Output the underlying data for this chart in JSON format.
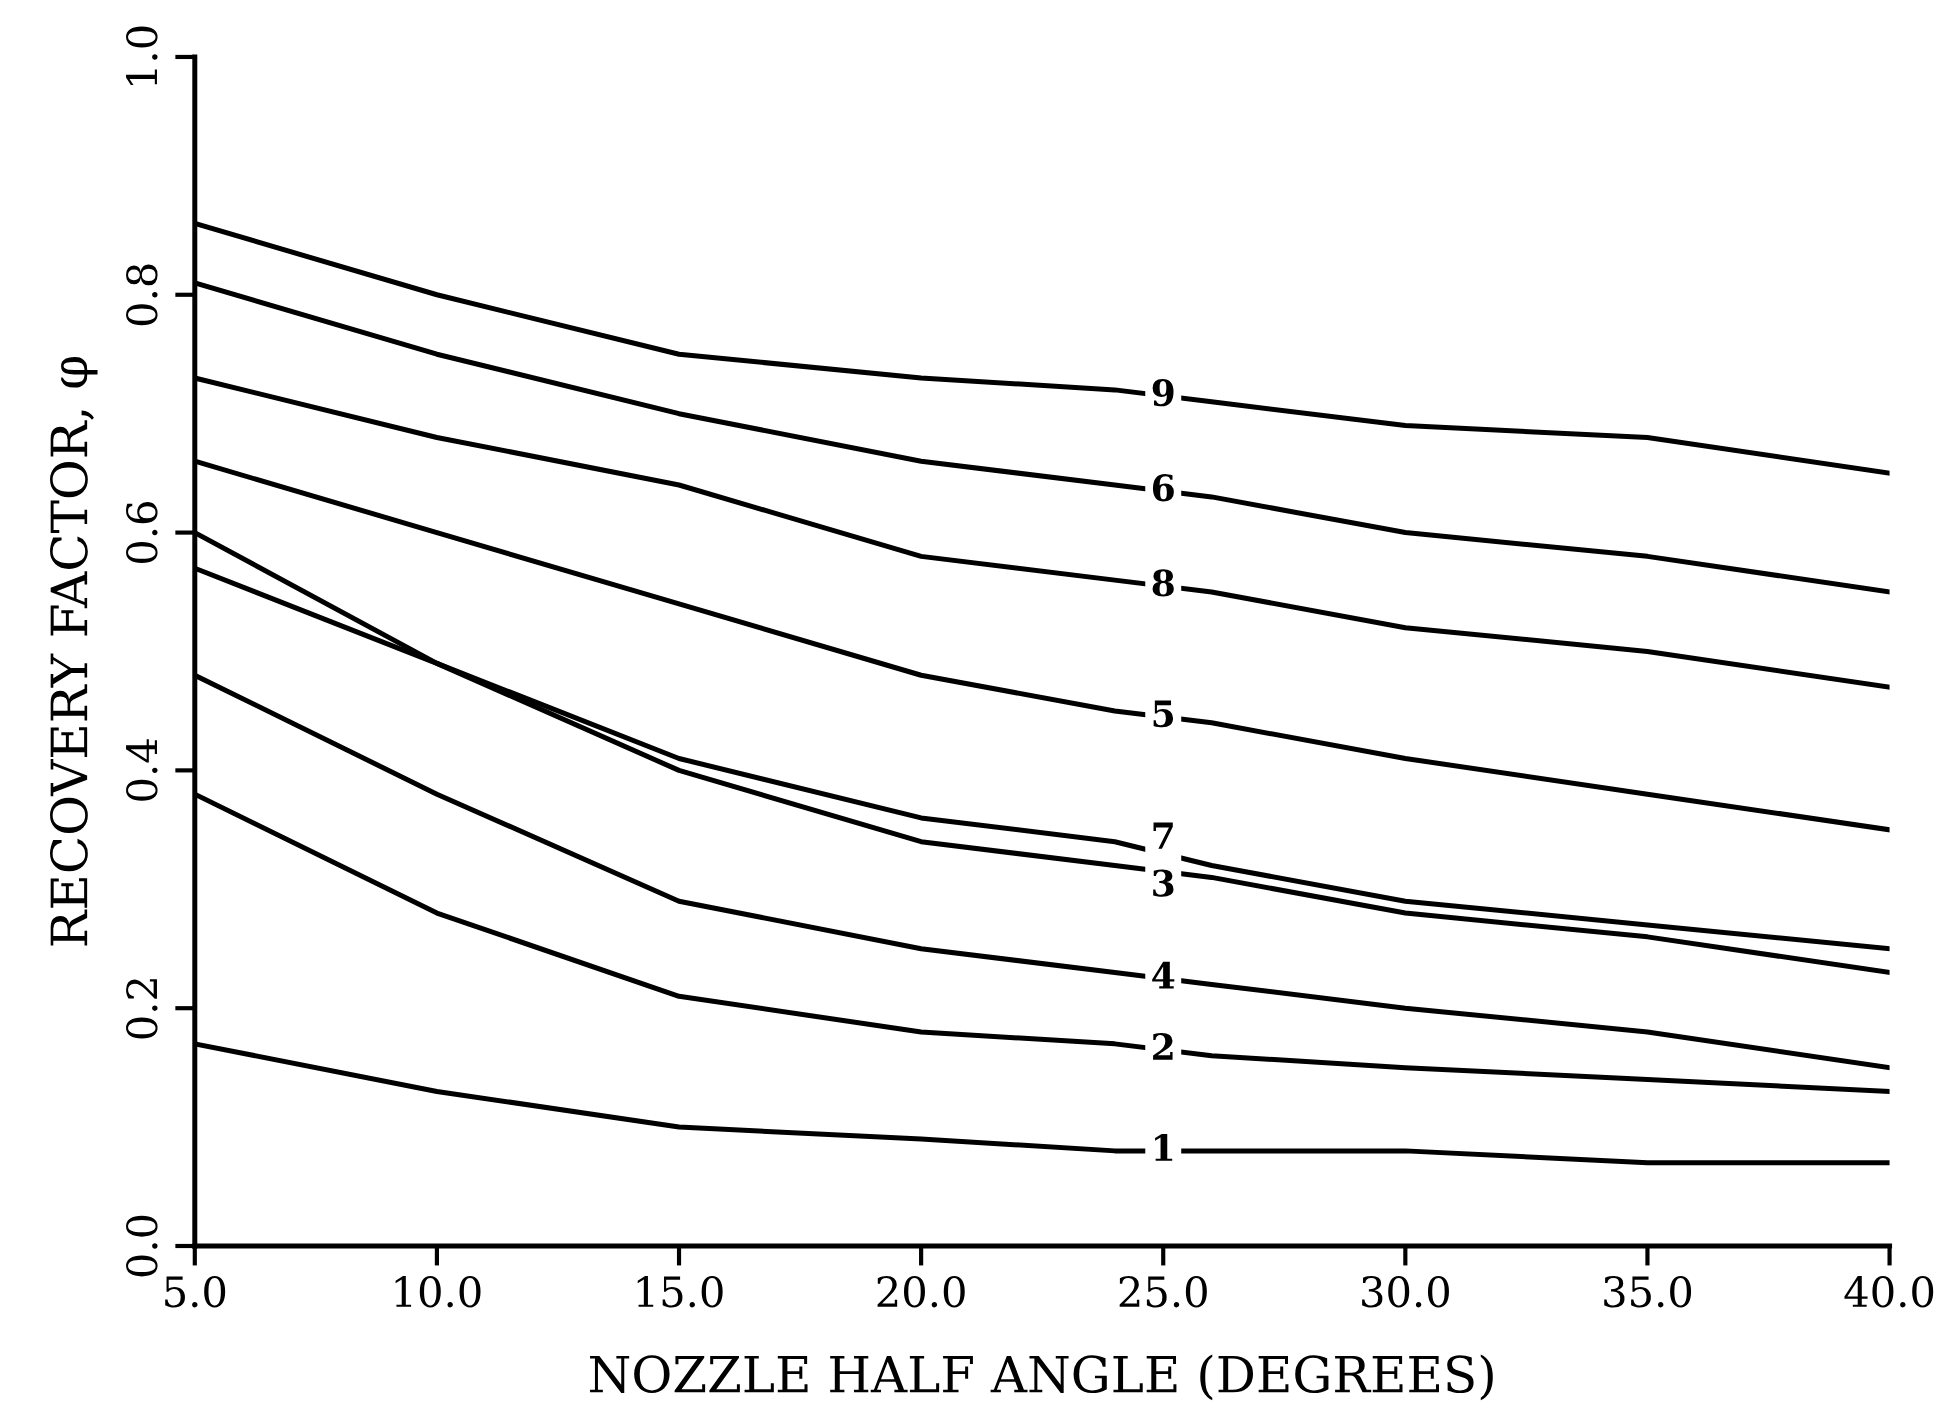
{
  "chart_data": {
    "type": "line",
    "xlabel": "NOZZLE HALF ANGLE (DEGREES)",
    "ylabel": "RECOVERY FACTOR, φ",
    "xlim": [
      5,
      40
    ],
    "ylim": [
      0,
      1
    ],
    "xticks": [
      {
        "value": 5,
        "label": "5.0"
      },
      {
        "value": 10,
        "label": "10.0"
      },
      {
        "value": 15,
        "label": "15.0"
      },
      {
        "value": 20,
        "label": "20.0"
      },
      {
        "value": 25,
        "label": "25.0"
      },
      {
        "value": 30,
        "label": "30.0"
      },
      {
        "value": 35,
        "label": "35.0"
      },
      {
        "value": 40,
        "label": "40.0"
      }
    ],
    "yticks": [
      {
        "value": 0,
        "label": "0.0"
      },
      {
        "value": 0.2,
        "label": "0.2"
      },
      {
        "value": 0.4,
        "label": "0.4"
      },
      {
        "value": 0.6,
        "label": "0.6"
      },
      {
        "value": 0.8,
        "label": "0.8"
      },
      {
        "value": 1,
        "label": "1.0"
      }
    ],
    "grid": false,
    "legend": false,
    "marker": "none",
    "line_style": "solid",
    "x": [
      5,
      10,
      15,
      20,
      24,
      26,
      30,
      35,
      40
    ],
    "series": [
      {
        "name": "1",
        "color": "#000000",
        "values": [
          0.17,
          0.13,
          0.1,
          0.09,
          0.08,
          0.08,
          0.08,
          0.07,
          0.07
        ]
      },
      {
        "name": "2",
        "color": "#000000",
        "values": [
          0.38,
          0.28,
          0.21,
          0.18,
          0.17,
          0.16,
          0.15,
          0.14,
          0.13
        ]
      },
      {
        "name": "3",
        "color": "#000000",
        "values": [
          0.57,
          0.49,
          0.4,
          0.34,
          0.32,
          0.31,
          0.28,
          0.26,
          0.23
        ]
      },
      {
        "name": "4",
        "color": "#000000",
        "values": [
          0.48,
          0.38,
          0.29,
          0.25,
          0.23,
          0.22,
          0.2,
          0.18,
          0.15
        ]
      },
      {
        "name": "5",
        "color": "#000000",
        "values": [
          0.66,
          0.6,
          0.54,
          0.48,
          0.45,
          0.44,
          0.41,
          0.38,
          0.35
        ]
      },
      {
        "name": "6",
        "color": "#000000",
        "values": [
          0.81,
          0.75,
          0.7,
          0.66,
          0.64,
          0.63,
          0.6,
          0.58,
          0.55
        ]
      },
      {
        "name": "7",
        "color": "#000000",
        "values": [
          0.6,
          0.49,
          0.41,
          0.36,
          0.34,
          0.32,
          0.29,
          0.27,
          0.25
        ]
      },
      {
        "name": "8",
        "color": "#000000",
        "values": [
          0.73,
          0.68,
          0.64,
          0.58,
          0.56,
          0.55,
          0.52,
          0.5,
          0.47
        ]
      },
      {
        "name": "9",
        "color": "#000000",
        "values": [
          0.86,
          0.8,
          0.75,
          0.73,
          0.72,
          0.71,
          0.69,
          0.68,
          0.65
        ]
      }
    ]
  }
}
